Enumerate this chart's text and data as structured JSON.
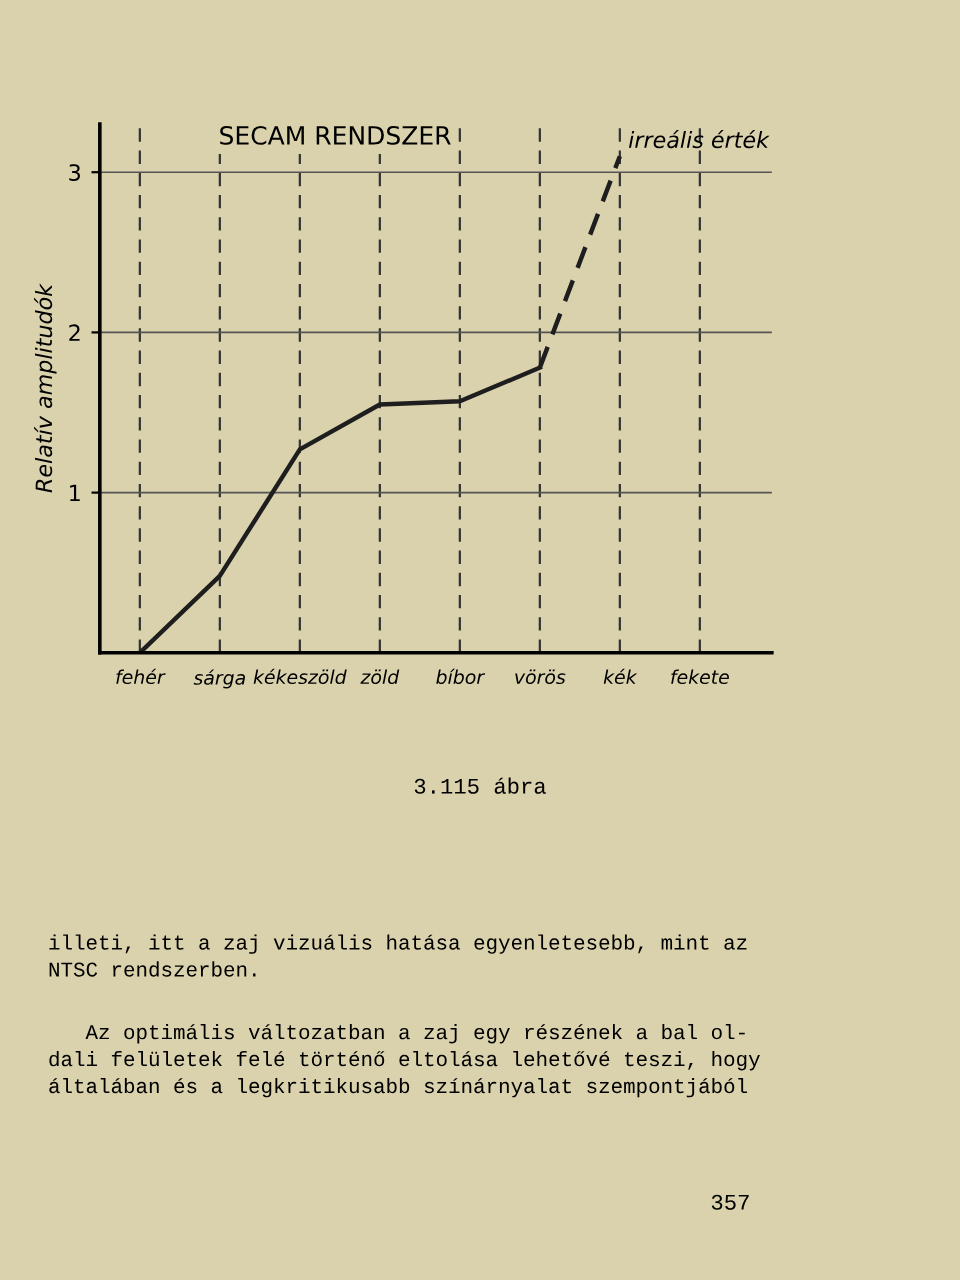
{
  "chart_data": {
    "type": "line",
    "title": "SECAM RENDSZER",
    "ylabel": "Relatív amplitudók",
    "categories": [
      "fehér",
      "sárga",
      "kékeszöld",
      "zöld",
      "bíbor",
      "vörös",
      "kék",
      "fekete"
    ],
    "series": [
      {
        "color": "#1e1e1e",
        "line_style": "solid",
        "values": [
          0,
          0.48,
          1.27,
          1.55,
          1.57,
          1.78,
          null,
          null
        ]
      },
      {
        "color": "#1e1e1e",
        "line_style": "dashed",
        "values": [
          null,
          null,
          null,
          null,
          null,
          1.78,
          3.1,
          null
        ]
      }
    ],
    "ylim": [
      0,
      3.3
    ],
    "yticks": [
      1,
      2,
      3
    ],
    "grid": true,
    "marker": "none",
    "annotations": [
      {
        "text": "irreális érték",
        "x": "kék",
        "y": 3.1
      },
      "3.115 ábra",
      "illeti, itt a zaj vizuális hatása egyenletesebb, mint az\nNTSC rendszerben.",
      "   Az optimális változatban a zaj egy részének a bal ol-\ndali felületek felé történő eltolása lehetővé teszi, hogy\náltalában és a legkritikusabb színárnyalat szempontjából",
      "357"
    ]
  }
}
